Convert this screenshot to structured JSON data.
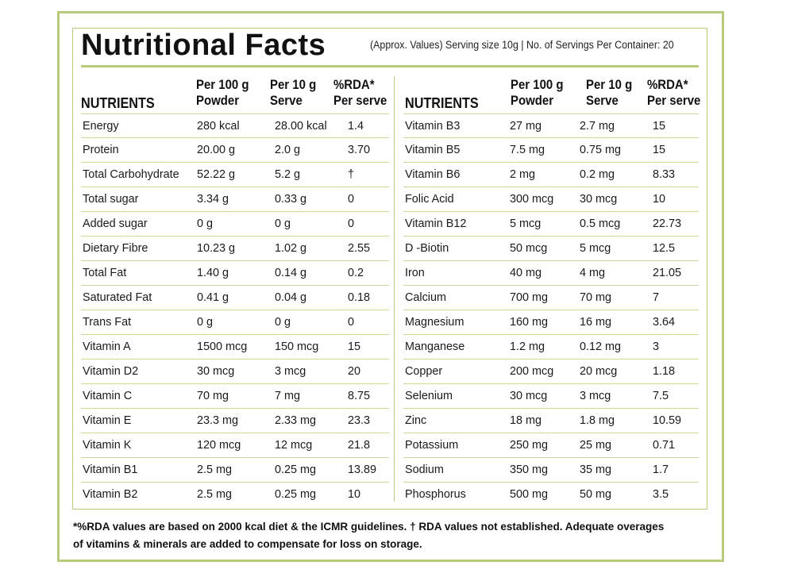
{
  "title": "Nutritional Facts",
  "subtitle": "(Approx. Values)  Serving size 10g  |  No. of Servings Per Container: 20",
  "left_headers": {
    "nutrients": "NUTRIENTS",
    "per100_line1": "Per 100 g",
    "per100_line2": "Powder",
    "per10_line1": "Per 10 g",
    "per10_line2": "Serve",
    "rda_line1": "%RDA*",
    "rda_line2": "Per serve"
  },
  "right_headers": {
    "nutrients": "NUTRIENTS",
    "per100_line1": "Per 100 g",
    "per100_line2": "Powder",
    "per10_line1": "Per 10 g",
    "per10_line2": "Serve",
    "rda_line1": "%RDA*",
    "rda_line2": "Per serve"
  },
  "left_rows": [
    [
      "Energy",
      "280 kcal",
      "28.00 kcal",
      "1.4"
    ],
    [
      "Protein",
      "20.00 g",
      "2.0 g",
      "3.70"
    ],
    [
      "Total Carbohydrate",
      "52.22 g",
      "5.2 g",
      "†"
    ],
    [
      "Total sugar",
      "3.34 g",
      "0.33 g",
      "0"
    ],
    [
      "Added sugar",
      "0 g",
      "0 g",
      "0"
    ],
    [
      "Dietary Fibre",
      "10.23 g",
      "1.02 g",
      "2.55"
    ],
    [
      "Total Fat",
      "1.40 g",
      "0.14 g",
      "0.2"
    ],
    [
      "Saturated Fat",
      "0.41 g",
      "0.04 g",
      "0.18"
    ],
    [
      "Trans Fat",
      "0 g",
      "0 g",
      "0"
    ],
    [
      "Vitamin A",
      "1500 mcg",
      "150 mcg",
      "15"
    ],
    [
      "Vitamin D2",
      "30 mcg",
      "3 mcg",
      "20"
    ],
    [
      "Vitamin C",
      "70 mg",
      "7 mg",
      "8.75"
    ],
    [
      "Vitamin E",
      "23.3 mg",
      "2.33 mg",
      "23.3"
    ],
    [
      "Vitamin K",
      "120 mcg",
      "12 mcg",
      "21.8"
    ],
    [
      "Vitamin B1",
      "2.5 mg",
      "0.25 mg",
      "13.89"
    ],
    [
      "Vitamin B2",
      "2.5 mg",
      "0.25 mg",
      "10"
    ]
  ],
  "right_rows": [
    [
      "Vitamin B3",
      "27 mg",
      "2.7 mg",
      "15"
    ],
    [
      "Vitamin B5",
      "7.5 mg",
      "0.75 mg",
      "15"
    ],
    [
      "Vitamin B6",
      "2 mg",
      "0.2 mg",
      "8.33"
    ],
    [
      "Folic Acid",
      "300 mcg",
      "30 mcg",
      "10"
    ],
    [
      "Vitamin B12",
      "5 mcg",
      "0.5 mcg",
      "22.73"
    ],
    [
      "D -Biotin",
      "50 mcg",
      "5 mcg",
      "12.5"
    ],
    [
      "Iron",
      "40 mg",
      "4 mg",
      "21.05"
    ],
    [
      "Calcium",
      "700 mg",
      "70 mg",
      "7"
    ],
    [
      "Magnesium",
      "160 mg",
      "16 mg",
      "3.64"
    ],
    [
      "Manganese",
      "1.2 mg",
      "0.12 mg",
      "3"
    ],
    [
      "Copper",
      "200 mcg",
      "20 mcg",
      "1.18"
    ],
    [
      "Selenium",
      "30 mcg",
      "3 mcg",
      "7.5"
    ],
    [
      "Zinc",
      "18 mg",
      "1.8 mg",
      "10.59"
    ],
    [
      "Potassium",
      "250 mg",
      "25 mg",
      "0.71"
    ],
    [
      "Sodium",
      "350 mg",
      "35 mg",
      "1.7"
    ],
    [
      "Phosphorus",
      "500 mg",
      "50 mg",
      "3.5"
    ]
  ],
  "footnote_line1": "*%RDA values are based on 2000 kcal diet & the ICMR guidelines. † RDA values not established. Adequate overages",
  "footnote_line2": "of vitamins & minerals are added to compensate for loss on storage.",
  "colors": {
    "border": "#b6cc7c",
    "row_rule": "#c6d99a",
    "text": "#1a1a1a"
  }
}
